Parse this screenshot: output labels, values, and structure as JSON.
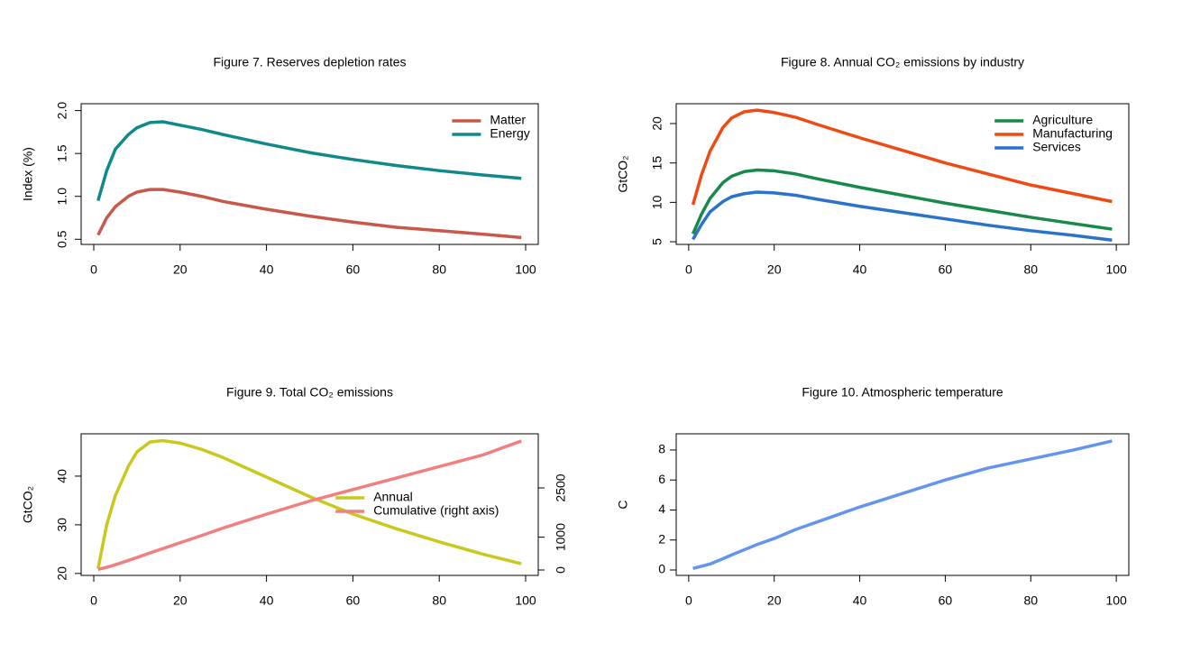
{
  "chart_data": [
    {
      "type": "line",
      "title": "Figure 7. Reserves depletion rates",
      "ylabel": "Index (%)",
      "x": [
        1,
        3,
        5,
        8,
        10,
        13,
        16,
        20,
        25,
        30,
        40,
        50,
        60,
        70,
        80,
        90,
        99
      ],
      "xlim": [
        -2.92,
        102.92
      ],
      "xticks": [
        0,
        20,
        40,
        60,
        80,
        100
      ],
      "ylim": [
        0.44,
        2.08
      ],
      "yticks": [
        0.5,
        {
          "value": 1,
          "label": "1.0"
        },
        1.5,
        {
          "value": 2,
          "label": "2.0"
        }
      ],
      "legend": "topright",
      "series": [
        {
          "name": "Matter",
          "color": "#c8584a",
          "values": [
            0.55,
            0.75,
            0.88,
            1.0,
            1.05,
            1.08,
            1.08,
            1.05,
            1.0,
            0.94,
            0.85,
            0.77,
            0.7,
            0.64,
            0.6,
            0.56,
            0.52
          ]
        },
        {
          "name": "Energy",
          "color": "#10898a",
          "values": [
            0.95,
            1.3,
            1.55,
            1.72,
            1.8,
            1.86,
            1.87,
            1.83,
            1.78,
            1.72,
            1.61,
            1.51,
            1.43,
            1.36,
            1.3,
            1.25,
            1.21
          ]
        }
      ]
    },
    {
      "type": "line",
      "title": "Figure 8. Annual CO₂ emissions by industry",
      "ylabel": "GtCO₂",
      "x": [
        1,
        3,
        5,
        8,
        10,
        13,
        16,
        20,
        25,
        30,
        40,
        50,
        60,
        70,
        80,
        90,
        99
      ],
      "xlim": [
        -2.92,
        102.92
      ],
      "xticks": [
        0,
        20,
        40,
        60,
        80,
        100
      ],
      "ylim": [
        4.66,
        22.52
      ],
      "yticks": [
        5,
        10,
        15,
        20
      ],
      "legend": "topright",
      "series": [
        {
          "name": "Agriculture",
          "color": "#17894a",
          "values": [
            6.0,
            8.5,
            10.5,
            12.5,
            13.3,
            13.9,
            14.1,
            14.0,
            13.6,
            13.0,
            11.9,
            10.9,
            9.9,
            9.0,
            8.1,
            7.3,
            6.6
          ]
        },
        {
          "name": "Manufacturing",
          "color": "#ee4b14",
          "values": [
            9.7,
            13.5,
            16.5,
            19.5,
            20.7,
            21.5,
            21.7,
            21.4,
            20.8,
            19.9,
            18.2,
            16.6,
            15.0,
            13.6,
            12.2,
            11.1,
            10.1
          ]
        },
        {
          "name": "Services",
          "color": "#2a73c8",
          "values": [
            5.3,
            7.2,
            8.8,
            10.1,
            10.7,
            11.1,
            11.3,
            11.2,
            10.9,
            10.4,
            9.5,
            8.7,
            7.9,
            7.1,
            6.4,
            5.8,
            5.2
          ]
        }
      ]
    },
    {
      "type": "line",
      "title": "Figure 9. Total CO₂ emissions",
      "ylabel": "GtCO₂",
      "x": [
        1,
        3,
        5,
        8,
        10,
        13,
        16,
        20,
        25,
        30,
        40,
        50,
        60,
        70,
        80,
        90,
        99
      ],
      "xlim": [
        -2.92,
        102.92
      ],
      "xticks": [
        0,
        20,
        40,
        60,
        80,
        100
      ],
      "ylim": [
        19.6,
        48.7
      ],
      "yticks": [
        20,
        30,
        40
      ],
      "y2lim": [
        -165,
        4148
      ],
      "y2ticks": [
        0,
        1000,
        2500
      ],
      "legend": "right",
      "series": [
        {
          "name": "Annual",
          "color": "#c8c81e",
          "values": [
            21,
            30,
            36,
            42,
            45,
            47,
            47.3,
            46.8,
            45.5,
            43.8,
            39.8,
            35.8,
            32.2,
            29.2,
            26.5,
            24.0,
            22.0
          ]
        },
        {
          "name": "Cumulative (right axis)",
          "color": "#f08080",
          "axis": "y2",
          "values": [
            20,
            80,
            160,
            290,
            380,
            520,
            650,
            830,
            1050,
            1280,
            1700,
            2100,
            2450,
            2800,
            3150,
            3500,
            3930
          ]
        }
      ]
    },
    {
      "type": "line",
      "title": "Figure 10. Atmospheric temperature",
      "ylabel": "C",
      "x": [
        1,
        3,
        5,
        8,
        10,
        13,
        16,
        20,
        25,
        30,
        40,
        50,
        60,
        70,
        80,
        90,
        99
      ],
      "xlim": [
        -2.92,
        102.92
      ],
      "xticks": [
        0,
        20,
        40,
        60,
        80,
        100
      ],
      "ylim": [
        -0.36,
        9.08
      ],
      "yticks": [
        0,
        2,
        4,
        6,
        8
      ],
      "series": [
        {
          "name": null,
          "color": "#6495ed",
          "values": [
            0.1,
            0.25,
            0.4,
            0.75,
            1.0,
            1.35,
            1.7,
            2.1,
            2.7,
            3.2,
            4.2,
            5.1,
            6.0,
            6.8,
            7.4,
            8.0,
            8.6
          ]
        }
      ]
    }
  ]
}
